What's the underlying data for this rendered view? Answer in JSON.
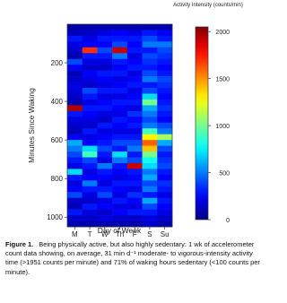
{
  "chart_data": {
    "type": "heatmap",
    "title": "Activity Intensity (counts/min)",
    "x_label": "Day of Week",
    "y_label": "Minutes Since Waking",
    "categories": [
      "M",
      "T",
      "W",
      "Th",
      "F",
      "S",
      "Su"
    ],
    "bins": [
      0,
      30,
      60,
      90,
      120,
      150,
      180,
      210,
      240,
      270,
      300,
      330,
      360,
      390,
      420,
      450,
      480,
      510,
      540,
      570,
      600,
      630,
      660,
      690,
      720,
      750,
      780,
      810,
      840,
      870,
      900,
      930,
      960,
      990,
      1020,
      1050
    ],
    "values": [
      [
        80,
        120,
        300,
        200,
        150,
        100,
        400,
        250,
        120,
        150,
        200,
        180,
        150,
        100,
        1950,
        300,
        200,
        150,
        120,
        250,
        600,
        500,
        400,
        300,
        200,
        700,
        300,
        200,
        250,
        400,
        150,
        120,
        300,
        150,
        100
      ],
      [
        100,
        150,
        200,
        250,
        1700,
        300,
        200,
        150,
        250,
        200,
        150,
        400,
        300,
        200,
        300,
        250,
        200,
        150,
        300,
        200,
        250,
        700,
        900,
        400,
        300,
        200,
        250,
        500,
        300,
        200,
        150,
        300,
        200,
        150,
        100
      ],
      [
        100,
        200,
        300,
        250,
        400,
        300,
        200,
        150,
        300,
        250,
        200,
        300,
        200,
        250,
        300,
        200,
        150,
        300,
        200,
        250,
        300,
        400,
        300,
        200,
        500,
        300,
        250,
        200,
        300,
        400,
        200,
        250,
        150,
        200,
        100
      ],
      [
        100,
        250,
        300,
        400,
        1900,
        500,
        300,
        250,
        300,
        200,
        250,
        300,
        200,
        300,
        250,
        200,
        300,
        250,
        200,
        300,
        400,
        300,
        700,
        500,
        300,
        250,
        200,
        300,
        250,
        200,
        300,
        200,
        250,
        150,
        100
      ],
      [
        100,
        200,
        300,
        250,
        300,
        200,
        250,
        300,
        200,
        250,
        300,
        200,
        250,
        300,
        200,
        350,
        250,
        300,
        200,
        300,
        400,
        500,
        300,
        400,
        1900,
        300,
        250,
        300,
        200,
        350,
        250,
        200,
        300,
        150,
        100
      ],
      [
        100,
        300,
        400,
        500,
        300,
        400,
        350,
        300,
        400,
        500,
        300,
        400,
        700,
        1000,
        600,
        500,
        400,
        500,
        900,
        1300,
        1600,
        1400,
        1000,
        800,
        700,
        500,
        600,
        400,
        500,
        300,
        600,
        400,
        300,
        200,
        150
      ],
      [
        100,
        250,
        300,
        500,
        400,
        350,
        300,
        250,
        300,
        400,
        350,
        300,
        250,
        300,
        350,
        300,
        250,
        400,
        500,
        1100,
        600,
        400,
        300,
        350,
        400,
        300,
        250,
        350,
        300,
        200,
        300,
        250,
        200,
        150,
        100
      ]
    ],
    "ylim": [
      0,
      1050
    ],
    "yticks": [
      200,
      400,
      600,
      800,
      1000
    ],
    "colormap": "jet",
    "clim": [
      0,
      2050
    ],
    "cticks": [
      0,
      500,
      1000,
      1500,
      2000
    ]
  },
  "caption": {
    "label": "Figure 1.",
    "text": "Being physically active, but also highly sedentary: 1 wk of accelerometer count data showing, on average, 31 min d⁻¹ moderate- to vigorous-intensity activity time (>1951 counts per minute) and 71% of waking hours sedentary (<100 counts per minute)."
  }
}
